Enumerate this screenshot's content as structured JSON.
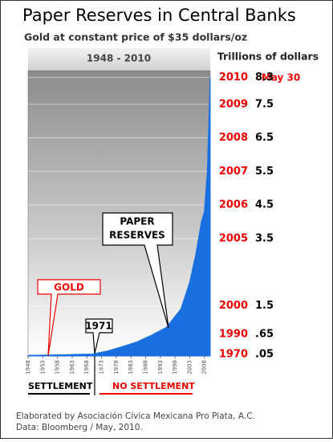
{
  "chart_data": {
    "type": "area",
    "title": "Paper Reserves in Central Banks",
    "subtitle": "Gold at constant price of $35 dollars/oz",
    "period": "1948 - 2010",
    "y_axis_label": "Trillions of dollars",
    "x": [
      1948,
      1955,
      1960,
      1965,
      1970,
      1975,
      1980,
      1985,
      1990,
      1995,
      2000,
      2003,
      2005,
      2007,
      2008,
      2009,
      2010
    ],
    "values": [
      0.02,
      0.03,
      0.04,
      0.05,
      0.06,
      0.15,
      0.28,
      0.42,
      0.62,
      0.85,
      1.4,
      2.2,
      3.0,
      4.0,
      4.3,
      5.5,
      8.3
    ],
    "color": "#1a6fe0",
    "xlim": [
      1948,
      2010
    ],
    "xticks": [
      1948,
      1953,
      1958,
      1963,
      1968,
      1973,
      1978,
      1983,
      1988,
      1993,
      1998,
      2003,
      2008
    ],
    "ylim": [
      0,
      8.5
    ],
    "yticks": [
      8.3,
      7.5,
      6.5,
      5.5,
      4.5,
      3.5,
      1.5,
      {
        "value": 0.65,
        "label": ".65"
      },
      {
        "value": 0.05,
        "label": ".05"
      }
    ],
    "ytick_years": [
      "2010",
      "2009",
      "2008",
      "2007",
      "2006",
      "2005",
      "2000",
      "1990",
      "1970"
    ],
    "grid": true,
    "annotations": {
      "date_note": "May 30",
      "gold": "GOLD",
      "paper": [
        "PAPER",
        "RESERVES"
      ],
      "year_1971": "1971",
      "settlement": "SETTLEMENT",
      "no_settlement": "NO SETTLEMENT"
    },
    "footer": [
      "Elaborated by Asociación Cívica Mexicana Pro Plata, A.C.",
      "Data: Bloomberg / May, 2010."
    ]
  }
}
